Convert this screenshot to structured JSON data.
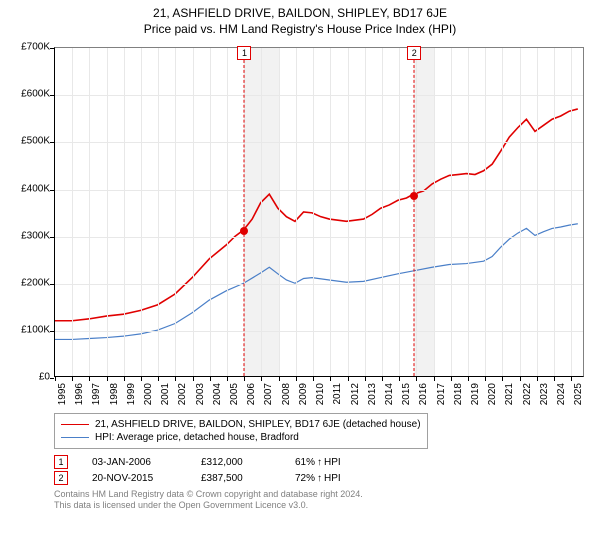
{
  "title": "21, ASHFIELD DRIVE, BAILDON, SHIPLEY, BD17 6JE",
  "subtitle": "Price paid vs. HM Land Registry's House Price Index (HPI)",
  "chart": {
    "type": "line",
    "background_color": "#ffffff",
    "grid_color": "#e8e8e8",
    "axis_color": "#000000",
    "shade_color": "#eeeeee",
    "xlim": [
      1995,
      2025.8
    ],
    "ylim": [
      0,
      700000
    ],
    "yticks": [
      0,
      100000,
      200000,
      300000,
      400000,
      500000,
      600000,
      700000
    ],
    "ytick_labels": [
      "£0",
      "£100K",
      "£200K",
      "£300K",
      "£400K",
      "£500K",
      "£600K",
      "£700K"
    ],
    "xticks": [
      1995,
      1996,
      1997,
      1998,
      1999,
      2000,
      2001,
      2002,
      2003,
      2004,
      2005,
      2006,
      2007,
      2008,
      2009,
      2010,
      2011,
      2012,
      2013,
      2014,
      2015,
      2016,
      2017,
      2018,
      2019,
      2020,
      2021,
      2022,
      2023,
      2024,
      2025
    ],
    "xtick_labels": [
      "1995",
      "1996",
      "1997",
      "1998",
      "1999",
      "2000",
      "2001",
      "2002",
      "2003",
      "2004",
      "2005",
      "2006",
      "2007",
      "2008",
      "2009",
      "2010",
      "2011",
      "2012",
      "2013",
      "2014",
      "2015",
      "2016",
      "2017",
      "2018",
      "2019",
      "2020",
      "2021",
      "2022",
      "2023",
      "2024",
      "2025"
    ],
    "tick_fontsize": 10,
    "title_fontsize": 12,
    "shaded_ranges": [
      [
        2006.01,
        2008.0
      ],
      [
        2015.88,
        2017.0
      ]
    ],
    "series": [
      {
        "name": "property",
        "label": "21, ASHFIELD DRIVE, BAILDON, SHIPLEY, BD17 6JE (detached house)",
        "color": "#e00000",
        "line_width": 1.6,
        "data": [
          [
            1995,
            118000
          ],
          [
            1996,
            118000
          ],
          [
            1997,
            122000
          ],
          [
            1998,
            128000
          ],
          [
            1999,
            132000
          ],
          [
            2000,
            140000
          ],
          [
            2001,
            152000
          ],
          [
            2002,
            175000
          ],
          [
            2003,
            210000
          ],
          [
            2004,
            250000
          ],
          [
            2005,
            280000
          ],
          [
            2005.5,
            298000
          ],
          [
            2006.01,
            312000
          ],
          [
            2006.5,
            335000
          ],
          [
            2007,
            370000
          ],
          [
            2007.5,
            388000
          ],
          [
            2008,
            358000
          ],
          [
            2008.5,
            340000
          ],
          [
            2009,
            330000
          ],
          [
            2009.5,
            350000
          ],
          [
            2010,
            348000
          ],
          [
            2010.5,
            340000
          ],
          [
            2011,
            335000
          ],
          [
            2012,
            330000
          ],
          [
            2013,
            335000
          ],
          [
            2013.5,
            345000
          ],
          [
            2014,
            358000
          ],
          [
            2014.5,
            365000
          ],
          [
            2015,
            375000
          ],
          [
            2015.5,
            380000
          ],
          [
            2015.88,
            387500
          ],
          [
            2016.5,
            395000
          ],
          [
            2017,
            410000
          ],
          [
            2017.5,
            420000
          ],
          [
            2018,
            428000
          ],
          [
            2018.5,
            430000
          ],
          [
            2019,
            432000
          ],
          [
            2019.5,
            430000
          ],
          [
            2020,
            438000
          ],
          [
            2020.5,
            452000
          ],
          [
            2021,
            480000
          ],
          [
            2021.5,
            510000
          ],
          [
            2022,
            530000
          ],
          [
            2022.5,
            548000
          ],
          [
            2023,
            522000
          ],
          [
            2023.5,
            535000
          ],
          [
            2024,
            548000
          ],
          [
            2024.5,
            555000
          ],
          [
            2025,
            565000
          ],
          [
            2025.5,
            570000
          ]
        ]
      },
      {
        "name": "hpi",
        "label": "HPI: Average price, detached house, Bradford",
        "color": "#4a7fc8",
        "line_width": 1.2,
        "data": [
          [
            1995,
            78000
          ],
          [
            1996,
            78000
          ],
          [
            1997,
            80000
          ],
          [
            1998,
            82000
          ],
          [
            1999,
            85000
          ],
          [
            2000,
            90000
          ],
          [
            2001,
            98000
          ],
          [
            2002,
            112000
          ],
          [
            2003,
            135000
          ],
          [
            2004,
            162000
          ],
          [
            2005,
            182000
          ],
          [
            2006,
            198000
          ],
          [
            2007,
            220000
          ],
          [
            2007.5,
            232000
          ],
          [
            2008,
            218000
          ],
          [
            2008.5,
            205000
          ],
          [
            2009,
            198000
          ],
          [
            2009.5,
            208000
          ],
          [
            2010,
            210000
          ],
          [
            2011,
            205000
          ],
          [
            2012,
            200000
          ],
          [
            2013,
            202000
          ],
          [
            2014,
            210000
          ],
          [
            2015,
            218000
          ],
          [
            2016,
            225000
          ],
          [
            2017,
            232000
          ],
          [
            2018,
            238000
          ],
          [
            2019,
            240000
          ],
          [
            2020,
            245000
          ],
          [
            2020.5,
            255000
          ],
          [
            2021,
            275000
          ],
          [
            2021.5,
            292000
          ],
          [
            2022,
            305000
          ],
          [
            2022.5,
            315000
          ],
          [
            2023,
            300000
          ],
          [
            2023.5,
            308000
          ],
          [
            2024,
            315000
          ],
          [
            2024.5,
            318000
          ],
          [
            2025,
            322000
          ],
          [
            2025.5,
            325000
          ]
        ]
      }
    ],
    "markers": [
      {
        "index": 1,
        "x": 2006.01,
        "y": 312000
      },
      {
        "index": 2,
        "x": 2015.88,
        "y": 387500
      }
    ],
    "marker_color": "#e00000",
    "marker_size": 8
  },
  "legend": {
    "items": [
      {
        "label_ref": "chart.series.0.label",
        "color": "#e00000",
        "width": 1.6
      },
      {
        "label_ref": "chart.series.1.label",
        "color": "#4a7fc8",
        "width": 1.2
      }
    ]
  },
  "sales": [
    {
      "index": "1",
      "date": "03-JAN-2006",
      "price": "£312,000",
      "hpi_delta": "61%",
      "arrow": "↑",
      "hpi_label": "HPI"
    },
    {
      "index": "2",
      "date": "20-NOV-2015",
      "price": "£387,500",
      "hpi_delta": "72%",
      "arrow": "↑",
      "hpi_label": "HPI"
    }
  ],
  "footnotes": {
    "line1": "Contains HM Land Registry data © Crown copyright and database right 2024.",
    "line2": "This data is licensed under the Open Government Licence v3.0."
  }
}
